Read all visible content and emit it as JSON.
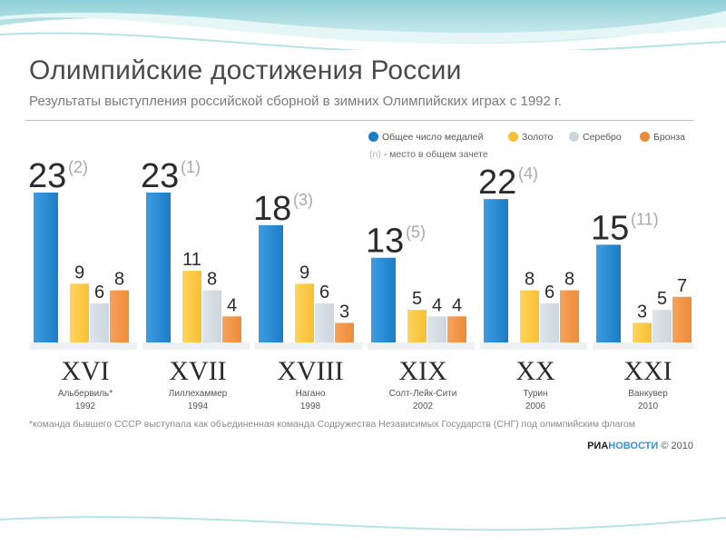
{
  "header": {
    "title": "Олимпийские достижения России",
    "subtitle": "Результаты выступления российской сборной в зимних Олимпийских играх с 1992 г."
  },
  "legend": {
    "total": "Общее число медалей",
    "gold": "Золото",
    "silver": "Серебро",
    "bronze": "Бронза",
    "note_paren": "(n)",
    "note_text": "- место в общем зачете"
  },
  "footnote": "*команда бывшего СССР выступала как объединенная команда Содружества Независимых Государств (СНГ) под олимпийским флагом",
  "brand": {
    "agency_left": "РИА",
    "agency_right": "НОВОСТИ",
    "copyright": "© 2010"
  },
  "colors": {
    "total": "#1b7dc8",
    "gold": "#f7bf35",
    "silver": "#cdd6de",
    "bronze": "#ee8b3a"
  },
  "chart_data": {
    "type": "bar",
    "categories": [
      "XVI",
      "XVII",
      "XVIII",
      "XIX",
      "XX",
      "XXI"
    ],
    "cities": [
      "Альбервиль*",
      "Лиллехаммер",
      "Нагано",
      "Солт-Лейк-Сити",
      "Турин",
      "Ванкувер"
    ],
    "years": [
      "1992",
      "1994",
      "1998",
      "2002",
      "2006",
      "2010"
    ],
    "ranks": [
      "(2)",
      "(1)",
      "(3)",
      "(5)",
      "(4)",
      "(11)"
    ],
    "series": [
      {
        "name": "Общее число медалей",
        "values": [
          23,
          23,
          18,
          13,
          22,
          15
        ]
      },
      {
        "name": "Золото",
        "values": [
          9,
          11,
          9,
          5,
          8,
          3
        ]
      },
      {
        "name": "Серебро",
        "values": [
          6,
          8,
          6,
          4,
          6,
          5
        ]
      },
      {
        "name": "Бронза",
        "values": [
          8,
          4,
          3,
          4,
          8,
          7
        ]
      }
    ],
    "ylim": [
      0,
      23
    ]
  }
}
